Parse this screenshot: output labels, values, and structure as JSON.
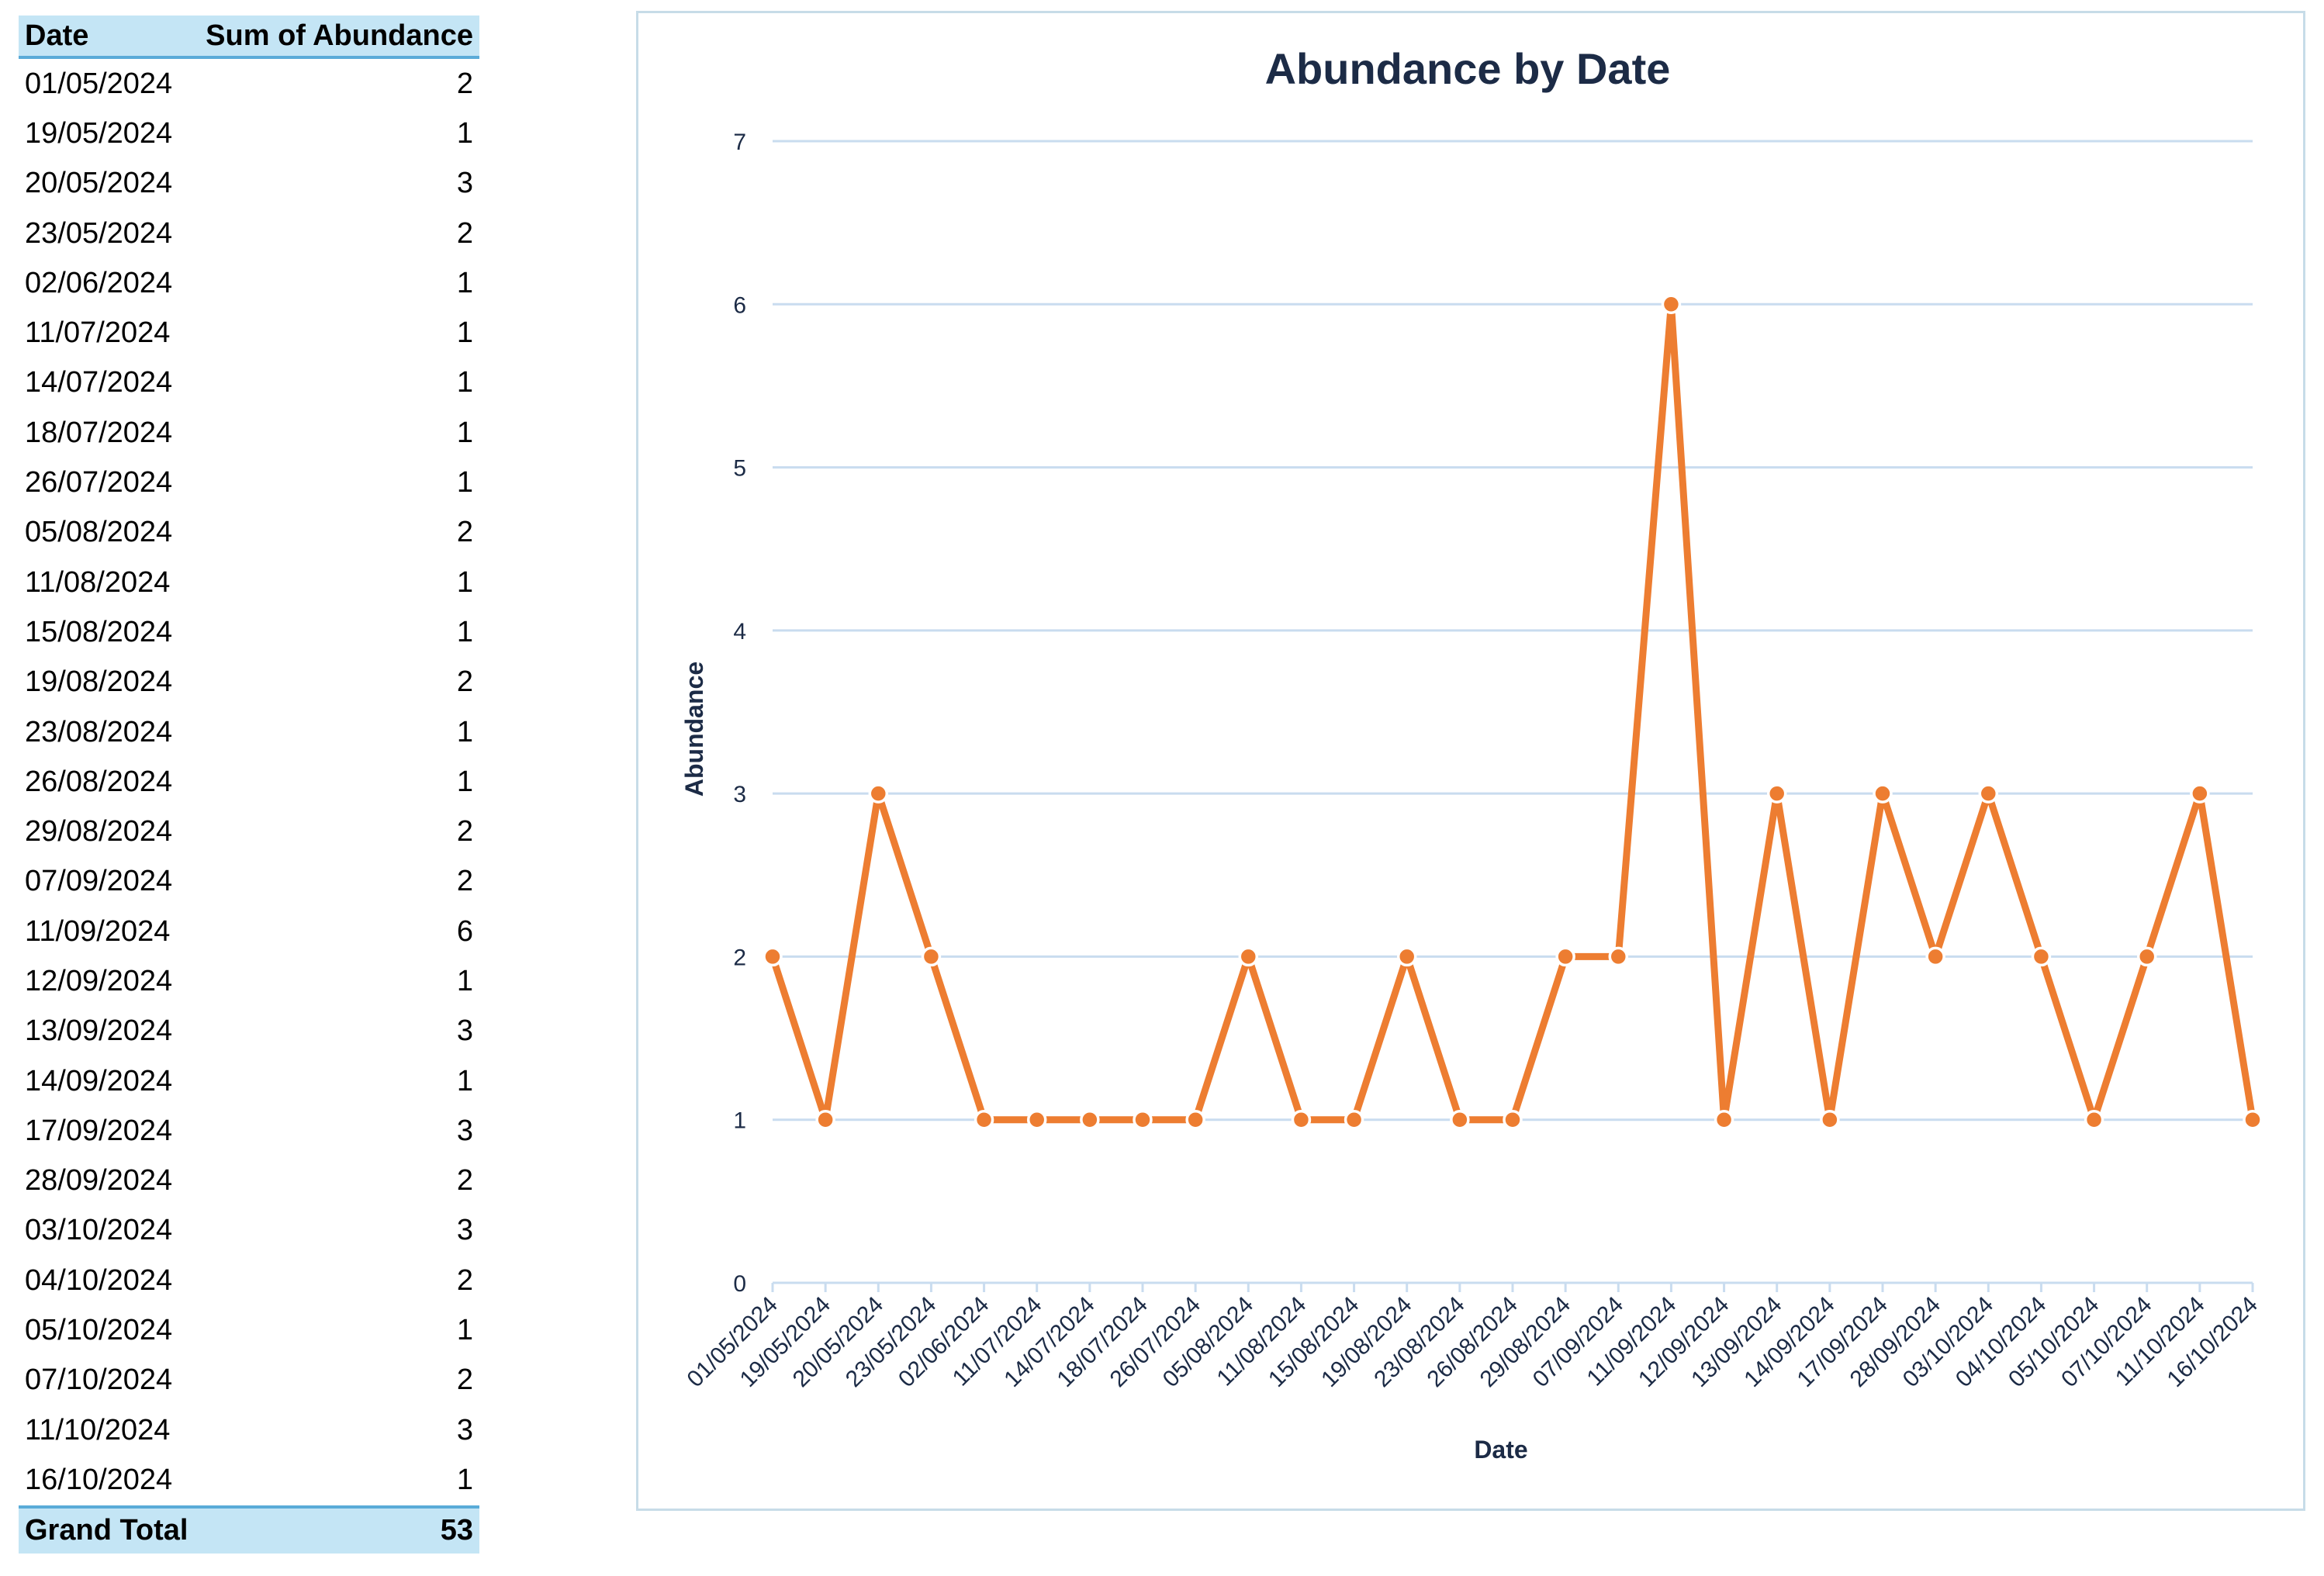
{
  "pivot": {
    "header": {
      "col1": "Date",
      "col2": "Sum of Abundance"
    },
    "rows": [
      {
        "date": "01/05/2024",
        "value": "2"
      },
      {
        "date": "19/05/2024",
        "value": "1"
      },
      {
        "date": "20/05/2024",
        "value": "3"
      },
      {
        "date": "23/05/2024",
        "value": "2"
      },
      {
        "date": "02/06/2024",
        "value": "1"
      },
      {
        "date": "11/07/2024",
        "value": "1"
      },
      {
        "date": "14/07/2024",
        "value": "1"
      },
      {
        "date": "18/07/2024",
        "value": "1"
      },
      {
        "date": "26/07/2024",
        "value": "1"
      },
      {
        "date": "05/08/2024",
        "value": "2"
      },
      {
        "date": "11/08/2024",
        "value": "1"
      },
      {
        "date": "15/08/2024",
        "value": "1"
      },
      {
        "date": "19/08/2024",
        "value": "2"
      },
      {
        "date": "23/08/2024",
        "value": "1"
      },
      {
        "date": "26/08/2024",
        "value": "1"
      },
      {
        "date": "29/08/2024",
        "value": "2"
      },
      {
        "date": "07/09/2024",
        "value": "2"
      },
      {
        "date": "11/09/2024",
        "value": "6"
      },
      {
        "date": "12/09/2024",
        "value": "1"
      },
      {
        "date": "13/09/2024",
        "value": "3"
      },
      {
        "date": "14/09/2024",
        "value": "1"
      },
      {
        "date": "17/09/2024",
        "value": "3"
      },
      {
        "date": "28/09/2024",
        "value": "2"
      },
      {
        "date": "03/10/2024",
        "value": "3"
      },
      {
        "date": "04/10/2024",
        "value": "2"
      },
      {
        "date": "05/10/2024",
        "value": "1"
      },
      {
        "date": "07/10/2024",
        "value": "2"
      },
      {
        "date": "11/10/2024",
        "value": "3"
      },
      {
        "date": "16/10/2024",
        "value": "1"
      }
    ],
    "total": {
      "label": "Grand Total",
      "value": "53"
    }
  },
  "chart_data": {
    "type": "line",
    "title": "Abundance by Date",
    "xlabel": "Date",
    "ylabel": "Abundance",
    "ylim": [
      0,
      7
    ],
    "yticks": [
      0,
      1,
      2,
      3,
      4,
      5,
      6,
      7
    ],
    "grid": true,
    "legend": "none",
    "color": "#ed7d31",
    "categories": [
      "01/05/2024",
      "19/05/2024",
      "20/05/2024",
      "23/05/2024",
      "02/06/2024",
      "11/07/2024",
      "14/07/2024",
      "18/07/2024",
      "26/07/2024",
      "05/08/2024",
      "11/08/2024",
      "15/08/2024",
      "19/08/2024",
      "23/08/2024",
      "26/08/2024",
      "29/08/2024",
      "07/09/2024",
      "11/09/2024",
      "12/09/2024",
      "13/09/2024",
      "14/09/2024",
      "17/09/2024",
      "28/09/2024",
      "03/10/2024",
      "04/10/2024",
      "05/10/2024",
      "07/10/2024",
      "11/10/2024",
      "16/10/2024"
    ],
    "values": [
      2,
      1,
      3,
      2,
      1,
      1,
      1,
      1,
      1,
      2,
      1,
      1,
      2,
      1,
      1,
      2,
      2,
      6,
      1,
      3,
      1,
      3,
      2,
      3,
      2,
      1,
      2,
      3,
      1
    ]
  }
}
